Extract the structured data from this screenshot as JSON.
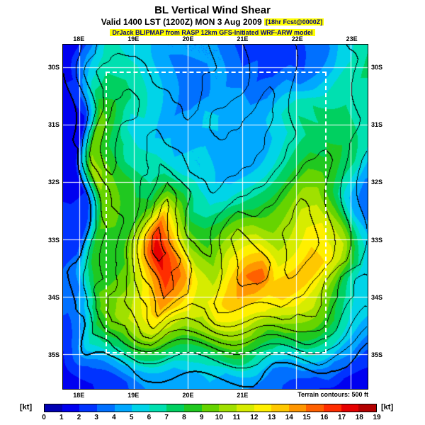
{
  "title": "BL Vertical Wind Shear",
  "subtitle": {
    "main": "Valid 1400 LST (1200Z) MON 3 Aug 2009 ",
    "forecast": "[18hr Fcst@0000Z]"
  },
  "model_line": "DrJack BLIPMAP from RASP 12km GFS-Initiated WRF-ARW model",
  "map": {
    "lon_labels_top": [
      "18E",
      "19E",
      "20E",
      "21E",
      "22E",
      "23E"
    ],
    "lon_labels_bottom": [
      "18E",
      "19E",
      "20E",
      "21E"
    ],
    "lon_fracs": [
      0.054,
      0.232,
      0.411,
      0.589,
      0.768,
      0.946
    ],
    "lat_labels": [
      "30S",
      "31S",
      "32S",
      "33S",
      "34S",
      "35S"
    ],
    "lat_fracs": [
      0.067,
      0.233,
      0.4,
      0.567,
      0.733,
      0.9
    ],
    "domain_box": {
      "x0": 0.139,
      "y0": 0.078,
      "x1": 0.866,
      "y1": 0.898
    },
    "terrain_note": "Terrain contours: 500 ft"
  },
  "colorbar": {
    "unit_left": "[kt]",
    "unit_right": "[kt]",
    "ticks": [
      "0",
      "1",
      "2",
      "3",
      "4",
      "5",
      "6",
      "7",
      "8",
      "9",
      "10",
      "11",
      "12",
      "13",
      "14",
      "15",
      "16",
      "17",
      "18",
      "19"
    ],
    "colors": [
      "#0000b3",
      "#0000f0",
      "#0033ff",
      "#0070ff",
      "#00a8ff",
      "#00d4e8",
      "#00e0b0",
      "#00d060",
      "#20c820",
      "#66d400",
      "#a0e000",
      "#d6ec00",
      "#fff000",
      "#ffc800",
      "#ff9600",
      "#ff6000",
      "#ff2d00",
      "#e60000",
      "#b30000"
    ]
  },
  "chart_data": {
    "type": "heatmap",
    "title": "BL Vertical Wind Shear",
    "units": "kt",
    "valid": "1400 LST (1200Z) MON 3 Aug 2009",
    "forecast_hours": "18hr Fcst@0000Z",
    "lon_range_deg_E": [
      17.7,
      23.3
    ],
    "lat_range_deg_S": [
      29.6,
      35.6
    ],
    "colorbar_ticks_kt": [
      0,
      1,
      2,
      3,
      4,
      5,
      6,
      7,
      8,
      9,
      10,
      11,
      12,
      13,
      14,
      15,
      16,
      17,
      18,
      19
    ],
    "terrain_contour_interval_ft": 500,
    "legend_position": "bottom",
    "grid_note": "coarse 20x20 approximation of plotted field, rows north to south",
    "shear_kt": [
      [
        1,
        1,
        3,
        6,
        6,
        5,
        5,
        4,
        4,
        4,
        4,
        3,
        2,
        2,
        2,
        3,
        3,
        5,
        6,
        7
      ],
      [
        1,
        2,
        4,
        6,
        7,
        6,
        5,
        4,
        4,
        4,
        4,
        3,
        3,
        2,
        3,
        3,
        4,
        5,
        6,
        7
      ],
      [
        2,
        2,
        5,
        7,
        7,
        6,
        5,
        4,
        3,
        4,
        4,
        4,
        3,
        3,
        4,
        4,
        5,
        6,
        7,
        7
      ],
      [
        1,
        3,
        7,
        8,
        7,
        6,
        5,
        4,
        3,
        4,
        5,
        5,
        4,
        4,
        5,
        6,
        7,
        7,
        7,
        6
      ],
      [
        1,
        2,
        9,
        8,
        6,
        6,
        5,
        4,
        4,
        5,
        5,
        4,
        4,
        5,
        6,
        7,
        7,
        8,
        7,
        6
      ],
      [
        1,
        2,
        10,
        8,
        6,
        5,
        5,
        5,
        4,
        5,
        5,
        4,
        4,
        5,
        6,
        7,
        8,
        8,
        7,
        6
      ],
      [
        2,
        2,
        10,
        8,
        7,
        6,
        6,
        5,
        5,
        5,
        4,
        4,
        5,
        6,
        7,
        8,
        8,
        8,
        7,
        5
      ],
      [
        1,
        2,
        11,
        9,
        7,
        6,
        7,
        6,
        5,
        5,
        4,
        5,
        6,
        7,
        8,
        9,
        9,
        8,
        6,
        4
      ],
      [
        1,
        2,
        10,
        9,
        8,
        7,
        9,
        8,
        6,
        5,
        5,
        6,
        7,
        8,
        9,
        10,
        10,
        8,
        5,
        3
      ],
      [
        2,
        3,
        10,
        9,
        8,
        8,
        12,
        10,
        7,
        6,
        6,
        7,
        8,
        9,
        10,
        11,
        11,
        9,
        5,
        3
      ],
      [
        2,
        3,
        9,
        9,
        8,
        10,
        15,
        12,
        9,
        8,
        8,
        9,
        10,
        10,
        11,
        12,
        12,
        10,
        6,
        4
      ],
      [
        2,
        3,
        8,
        8,
        9,
        12,
        17,
        14,
        10,
        9,
        10,
        11,
        12,
        11,
        12,
        13,
        12,
        11,
        7,
        5
      ],
      [
        2,
        3,
        8,
        8,
        9,
        13,
        18,
        15,
        11,
        10,
        12,
        13,
        14,
        12,
        13,
        14,
        13,
        11,
        8,
        5
      ],
      [
        3,
        4,
        8,
        9,
        10,
        13,
        17,
        15,
        12,
        11,
        13,
        15,
        16,
        13,
        14,
        13,
        12,
        10,
        7,
        5
      ],
      [
        3,
        4,
        9,
        10,
        11,
        13,
        16,
        14,
        12,
        12,
        13,
        14,
        14,
        13,
        13,
        12,
        11,
        9,
        7,
        5
      ],
      [
        3,
        5,
        9,
        10,
        11,
        12,
        14,
        13,
        12,
        11,
        12,
        12,
        12,
        12,
        11,
        10,
        9,
        8,
        6,
        5
      ],
      [
        2,
        4,
        8,
        9,
        9,
        10,
        11,
        11,
        10,
        10,
        10,
        10,
        10,
        9,
        9,
        8,
        7,
        6,
        5,
        4
      ],
      [
        1,
        3,
        6,
        7,
        7,
        8,
        8,
        8,
        8,
        8,
        8,
        8,
        7,
        7,
        6,
        6,
        5,
        4,
        4,
        3
      ],
      [
        1,
        2,
        3,
        4,
        5,
        5,
        5,
        5,
        6,
        6,
        5,
        5,
        5,
        4,
        4,
        4,
        3,
        3,
        2,
        2
      ],
      [
        1,
        1,
        2,
        2,
        3,
        4,
        4,
        4,
        4,
        5,
        4,
        4,
        3,
        3,
        3,
        2,
        2,
        1,
        1,
        1
      ]
    ],
    "terrain_levels_500ft": [
      [
        1,
        1,
        2,
        3,
        3,
        3,
        3,
        3,
        3,
        3,
        4,
        4,
        5,
        5,
        5,
        6,
        6,
        6,
        5,
        5
      ],
      [
        0,
        1,
        2,
        3,
        4,
        4,
        3,
        3,
        3,
        3,
        4,
        4,
        5,
        5,
        5,
        6,
        6,
        6,
        6,
        5
      ],
      [
        0,
        1,
        3,
        4,
        4,
        4,
        3,
        3,
        3,
        4,
        4,
        4,
        5,
        5,
        5,
        6,
        6,
        6,
        6,
        5
      ],
      [
        0,
        1,
        3,
        4,
        5,
        4,
        4,
        3,
        3,
        4,
        4,
        5,
        5,
        4,
        5,
        6,
        6,
        6,
        6,
        5
      ],
      [
        0,
        1,
        3,
        5,
        5,
        4,
        4,
        4,
        3,
        4,
        5,
        5,
        4,
        4,
        5,
        6,
        6,
        6,
        6,
        5
      ],
      [
        0,
        1,
        4,
        5,
        4,
        4,
        5,
        4,
        4,
        4,
        5,
        4,
        4,
        5,
        5,
        6,
        6,
        6,
        5,
        5
      ],
      [
        0,
        0,
        4,
        5,
        4,
        4,
        5,
        5,
        4,
        4,
        4,
        4,
        5,
        5,
        6,
        6,
        7,
        6,
        5,
        4
      ],
      [
        0,
        0,
        3,
        5,
        4,
        4,
        6,
        5,
        4,
        4,
        4,
        5,
        5,
        6,
        6,
        7,
        7,
        6,
        5,
        4
      ],
      [
        0,
        0,
        3,
        4,
        4,
        5,
        7,
        6,
        5,
        4,
        5,
        5,
        6,
        6,
        7,
        7,
        7,
        6,
        5,
        4
      ],
      [
        0,
        0,
        3,
        4,
        4,
        6,
        8,
        6,
        5,
        5,
        5,
        6,
        6,
        7,
        7,
        8,
        7,
        6,
        5,
        4
      ],
      [
        0,
        0,
        2,
        3,
        4,
        6,
        8,
        7,
        5,
        5,
        6,
        7,
        7,
        7,
        8,
        8,
        7,
        6,
        5,
        4
      ],
      [
        0,
        0,
        2,
        3,
        4,
        7,
        9,
        7,
        6,
        5,
        7,
        8,
        7,
        7,
        8,
        8,
        7,
        6,
        5,
        4
      ],
      [
        0,
        0,
        2,
        3,
        4,
        7,
        9,
        8,
        6,
        6,
        7,
        8,
        8,
        7,
        8,
        7,
        7,
        6,
        5,
        4
      ],
      [
        0,
        1,
        2,
        3,
        5,
        7,
        8,
        7,
        6,
        6,
        7,
        8,
        8,
        7,
        7,
        7,
        6,
        5,
        4,
        3
      ],
      [
        0,
        1,
        3,
        4,
        5,
        6,
        8,
        7,
        6,
        6,
        7,
        7,
        7,
        7,
        7,
        6,
        6,
        5,
        4,
        3
      ],
      [
        0,
        1,
        3,
        4,
        4,
        5,
        7,
        6,
        5,
        5,
        6,
        6,
        6,
        6,
        6,
        5,
        5,
        4,
        3,
        2
      ],
      [
        0,
        0,
        2,
        3,
        3,
        4,
        5,
        4,
        4,
        4,
        4,
        4,
        4,
        4,
        4,
        4,
        3,
        3,
        2,
        1
      ],
      [
        0,
        0,
        1,
        1,
        2,
        2,
        2,
        2,
        2,
        2,
        2,
        2,
        2,
        2,
        2,
        2,
        2,
        1,
        1,
        0
      ],
      [
        0,
        0,
        0,
        0,
        0,
        1,
        1,
        1,
        1,
        1,
        1,
        1,
        1,
        0,
        0,
        0,
        0,
        0,
        0,
        0
      ],
      [
        0,
        0,
        0,
        0,
        0,
        0,
        0,
        0,
        0,
        0,
        0,
        0,
        0,
        0,
        0,
        0,
        0,
        0,
        0,
        0
      ]
    ]
  }
}
